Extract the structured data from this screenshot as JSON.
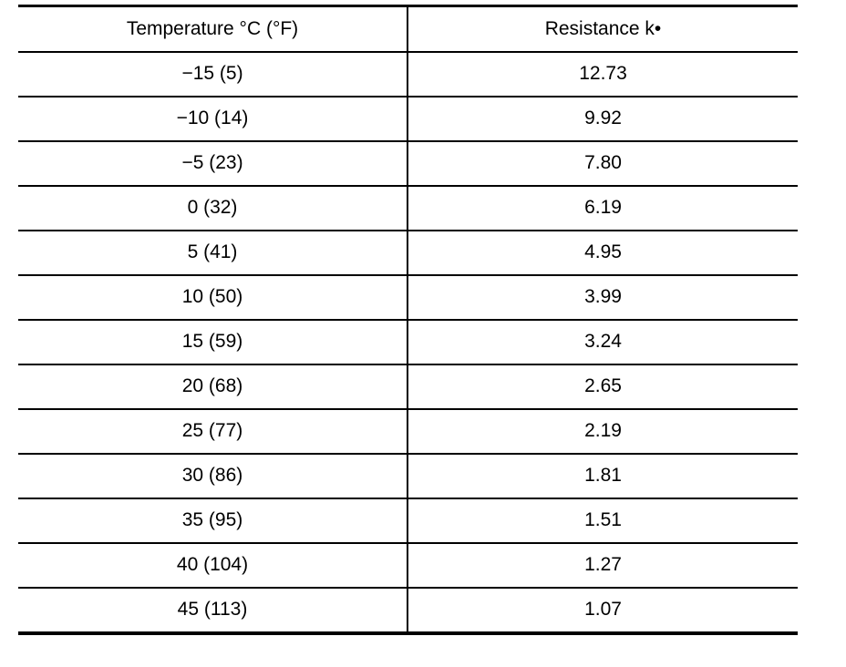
{
  "table": {
    "headers": {
      "temperature": "Temperature °C (°F)",
      "resistance": "Resistance k•"
    },
    "rows": [
      {
        "temperature": "−15 (5)",
        "resistance": "12.73"
      },
      {
        "temperature": "−10 (14)",
        "resistance": "9.92"
      },
      {
        "temperature": "−5 (23)",
        "resistance": "7.80"
      },
      {
        "temperature": "0 (32)",
        "resistance": "6.19"
      },
      {
        "temperature": "5 (41)",
        "resistance": "4.95"
      },
      {
        "temperature": "10 (50)",
        "resistance": "3.99"
      },
      {
        "temperature": "15 (59)",
        "resistance": "3.24"
      },
      {
        "temperature": "20 (68)",
        "resistance": "2.65"
      },
      {
        "temperature": "25 (77)",
        "resistance": "2.19"
      },
      {
        "temperature": "30 (86)",
        "resistance": "1.81"
      },
      {
        "temperature": "35 (95)",
        "resistance": "1.51"
      },
      {
        "temperature": "40 (104)",
        "resistance": "1.27"
      },
      {
        "temperature": "45 (113)",
        "resistance": "1.07"
      }
    ]
  }
}
